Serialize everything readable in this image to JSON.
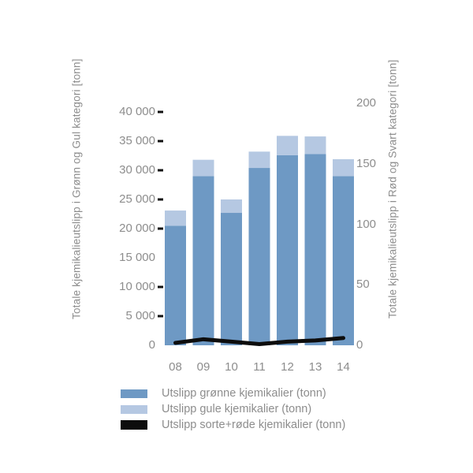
{
  "chart_data": {
    "type": "bar",
    "subtype": "stacked-bars-with-line-overlay",
    "categories": [
      "08",
      "09",
      "10",
      "11",
      "12",
      "13",
      "14"
    ],
    "series": [
      {
        "name": "Utslipp grønne kjemikalier (tonn)",
        "type": "bar",
        "axis": "left",
        "color": "#6e99c4",
        "values": [
          20500,
          29000,
          22700,
          30400,
          32600,
          32800,
          29000
        ]
      },
      {
        "name": "Utslipp gule kjemikalier (tonn)",
        "type": "bar",
        "axis": "left",
        "color": "#b5c8e2",
        "values": [
          2600,
          2800,
          2300,
          2800,
          3300,
          3000,
          2900
        ]
      },
      {
        "name": "Utslipp sorte+røde kjemikalier (tonn)",
        "type": "line",
        "axis": "right",
        "color": "#0d0d0d",
        "values": [
          2,
          5,
          3,
          1,
          3,
          4,
          6
        ]
      }
    ],
    "ylabel_left": "Totale kjemikalieutslipp i Grønn og Gul kategori [tonn]",
    "ylabel_right": "Totale kjemikalieutslipp i Rød og Svart kategori [tonn]",
    "left_axis": {
      "min": 0,
      "max": 40000,
      "ticks": [
        0,
        5000,
        10000,
        15000,
        20000,
        25000,
        30000,
        35000,
        40000
      ],
      "tick_labels": [
        "0",
        "5 000",
        "10 000",
        "15 000",
        "20 000",
        "25 000",
        "30 000",
        "35 000",
        "40 000"
      ],
      "dash_marked_ticks": [
        5000,
        10000,
        20000,
        25000,
        30000,
        35000,
        40000
      ]
    },
    "right_axis": {
      "min": 0,
      "max": 200,
      "ticks": [
        0,
        50,
        100,
        150,
        200
      ],
      "tick_labels": [
        "0",
        "50",
        "100",
        "150",
        "200"
      ]
    },
    "grid": "off",
    "legend_position": "bottom",
    "text_color": "#8d8d8d",
    "background_color": "#ffffff"
  }
}
